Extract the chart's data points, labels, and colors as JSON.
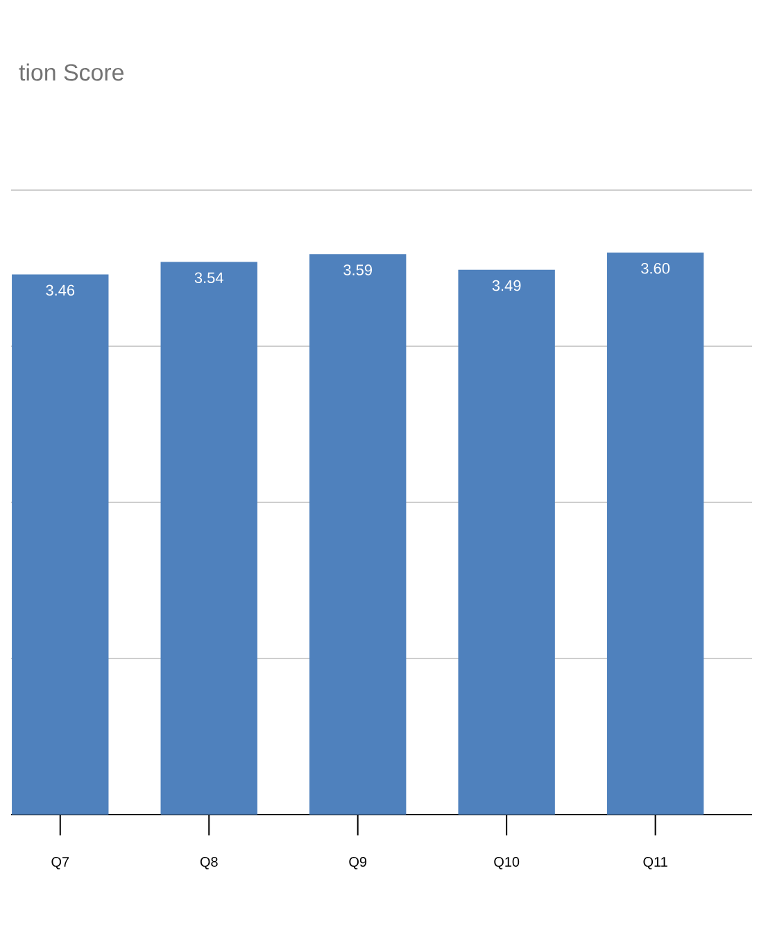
{
  "chart_data": {
    "type": "bar",
    "title": "tion Score",
    "categories": [
      "Q7",
      "Q8",
      "Q9",
      "Q10",
      "Q11"
    ],
    "values": [
      3.46,
      3.54,
      3.59,
      3.49,
      3.6
    ],
    "value_labels": [
      "3.46",
      "3.54",
      "3.59",
      "3.49",
      "3.60"
    ],
    "color": "#4f81bd",
    "ylim": [
      0,
      4
    ],
    "yticks": [
      {
        "value": 0,
        "label": null
      },
      {
        "value": 1,
        "label": null
      },
      {
        "value": 2,
        "label": null
      },
      {
        "value": 3,
        "label": null
      },
      {
        "value": 4,
        "label": null
      }
    ],
    "grid": "y",
    "tick_labels": "x"
  }
}
